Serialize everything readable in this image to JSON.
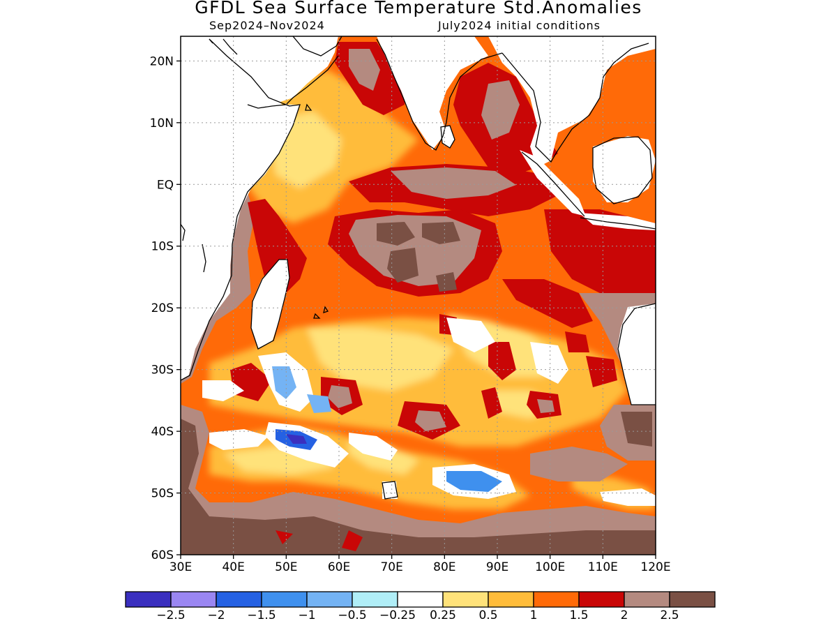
{
  "title": "GFDL Sea Surface Temperature Std.Anomalies",
  "subtitle_left": "Sep2024–Nov2024",
  "subtitle_right": "July2024 initial conditions",
  "map": {
    "lon_range": [
      30,
      120
    ],
    "lat_range": [
      -60,
      24
    ],
    "lon_ticks": [
      "30E",
      "40E",
      "50E",
      "60E",
      "70E",
      "80E",
      "90E",
      "100E",
      "110E",
      "120E"
    ],
    "lat_ticks": [
      "20N",
      "10N",
      "EQ",
      "10S",
      "20S",
      "30S",
      "40S",
      "50S",
      "60S"
    ],
    "grid": true,
    "land_color": "#ffffff",
    "coastline_color": "#000000"
  },
  "colorbar": {
    "colors": [
      "#3a2fbf",
      "#9a86f2",
      "#2561e3",
      "#3f90ee",
      "#74b3f4",
      "#b0eef7",
      "#ffffff",
      "#ffe27a",
      "#ffbc3a",
      "#ff6a08",
      "#c90606",
      "#b48a80",
      "#7a5044"
    ],
    "labels": [
      "−2.5",
      "−2",
      "−1.5",
      "−1",
      "−0.5",
      "−0.25",
      "0.25",
      "0.5",
      "1",
      "1.5",
      "2",
      "2.5"
    ]
  }
}
